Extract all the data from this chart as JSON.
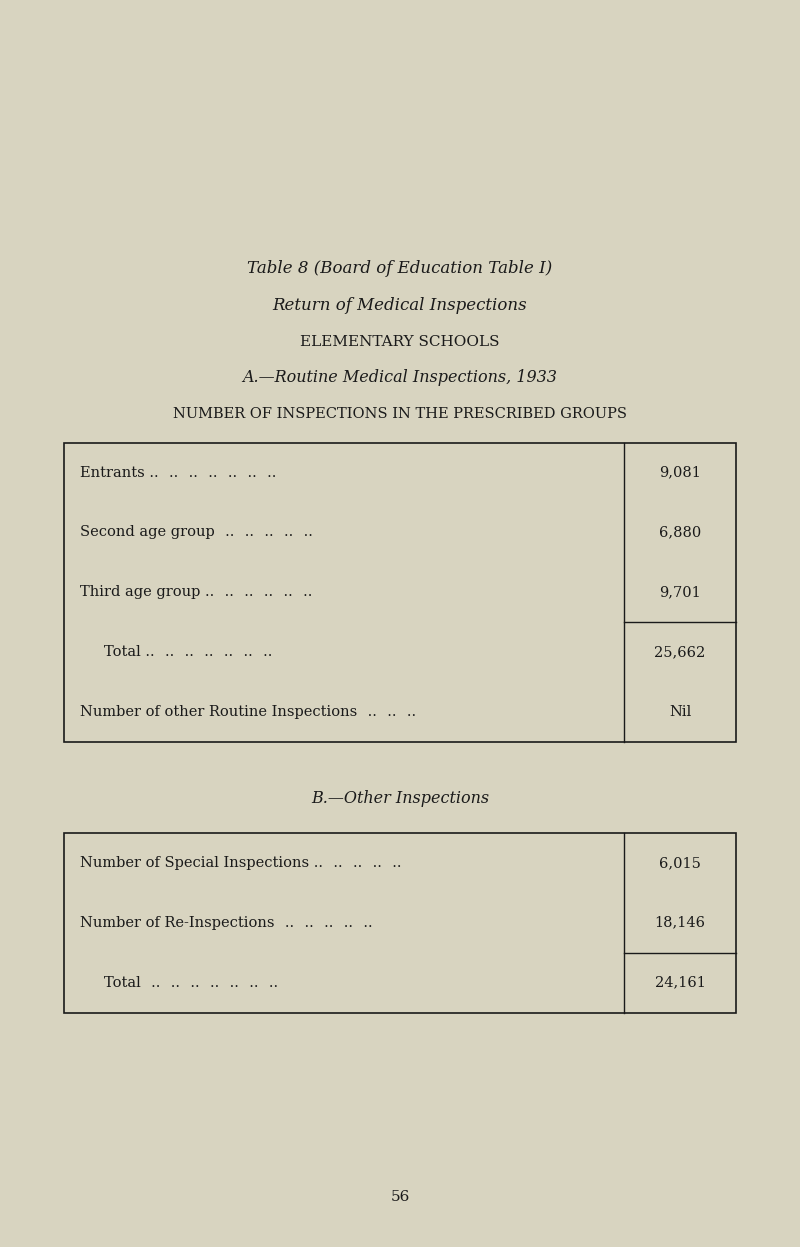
{
  "bg_color": "#d8d4c0",
  "title_line1": "Table 8 (Board of Education Table I)",
  "title_line2": "Return of Medical Inspections",
  "title_line3": "Elementary Schools",
  "title_line4": "A.—Routine Medical Inspections, 1933",
  "title_line5": "Number of Inspections in the Prescribed Groups",
  "table_a_rows": [
    [
      "Entrants ..    ..    ..    ..    ..    ..    ..",
      "9,081"
    ],
    [
      "Second age group    ..    ..    ..    ..    ..",
      "6,880"
    ],
    [
      "Third age group ..    ..    ..    ..    ..    ..",
      "9,701"
    ],
    [
      "Total ..    ..    ..    ..    ..    ..    ..",
      "25,662"
    ],
    [
      "Number of other Routine Inspections    ..    ..    ..",
      "Nil"
    ]
  ],
  "table_a_total_row_index": 3,
  "title_b": "B.—Other Inspections",
  "table_b_rows": [
    [
      "Number of Special Inspections ..    ..    ..    ..    ..",
      "6,015"
    ],
    [
      "Number of Re-Inspections    ..    ..    ..    ..    ..",
      "18,146"
    ],
    [
      "Total    ..    ..    ..    ..    ..    ..    ..",
      "24,161"
    ]
  ],
  "table_b_total_row_index": 2,
  "page_number": "56",
  "text_color": "#1a1a1a",
  "border_color": "#1a1a1a"
}
